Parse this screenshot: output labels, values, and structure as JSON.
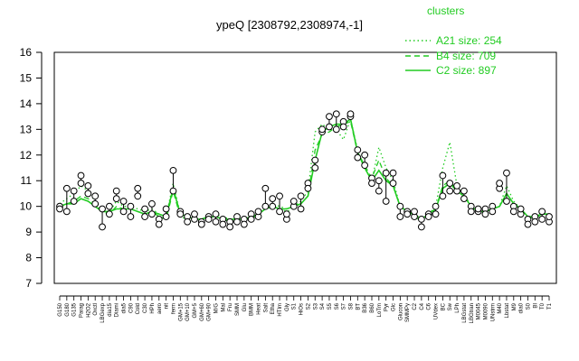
{
  "chart_data": {
    "type": "line",
    "title": "ypeQ [2308792,2308974,-1]",
    "xlabel": "",
    "ylabel": "",
    "ylim": [
      7,
      16
    ],
    "y_ticks": [
      7,
      8,
      9,
      10,
      11,
      12,
      13,
      14,
      15,
      16
    ],
    "grid": false,
    "legend": {
      "title": "clusters",
      "position": "top-right",
      "entries": [
        {
          "label": "A21 size: 254",
          "style": "dotted"
        },
        {
          "label": "B4 size: 709",
          "style": "dashed"
        },
        {
          "label": "C2 size: 897",
          "style": "solid"
        }
      ]
    },
    "line_color": "#22cc22",
    "categories": [
      "G150",
      "G180",
      "G135",
      "Parag",
      "H2O2",
      "Oxctl",
      "LBGexp",
      "dia15",
      "Diami",
      "dia5",
      "C90",
      "Cold",
      "C30",
      "HPh",
      "aero",
      "nit",
      "ferm",
      "GM+15",
      "GM+10",
      "GM+5",
      "GM+60",
      "GM+90",
      "M/G",
      "Mal",
      "Fru",
      "SMM",
      "Glu",
      "BMM",
      "Heat",
      "Salt",
      "Etha",
      "HTIm",
      "Gly",
      "S1",
      "HiOs",
      "S2",
      "S3",
      "S4",
      "S5",
      "S6",
      "S7",
      "S8",
      "BT",
      "B36",
      "B60",
      "LoTm",
      "Pyr",
      "Glc",
      "Glucon",
      "SMMPy",
      "C2",
      "C4",
      "C6",
      "UVdex",
      "BC",
      "Sw",
      "LPh",
      "LBGstat",
      "LBGtran",
      "M0045",
      "M0090",
      "UNstrm",
      "M40",
      "Lbstat",
      "M9",
      "dia0",
      "S0",
      "BI",
      "T0",
      "T1"
    ],
    "series": [
      {
        "name": "A21 size: 254",
        "style": "dotted",
        "values": [
          10.1,
          10.3,
          10.5,
          10.8,
          10.6,
          10.2,
          9.9,
          9.8,
          10.2,
          10.0,
          10.0,
          9.9,
          9.8,
          9.9,
          9.7,
          9.6,
          10.9,
          9.7,
          9.6,
          9.5,
          9.5,
          9.6,
          9.7,
          9.6,
          9.5,
          9.5,
          9.5,
          9.6,
          9.8,
          10.0,
          10.1,
          10.0,
          9.9,
          10.0,
          10.2,
          10.6,
          12.9,
          13.2,
          13.0,
          13.0,
          12.6,
          13.4,
          12.2,
          11.5,
          11.0,
          12.3,
          11.5,
          11.0,
          10.0,
          9.8,
          9.6,
          9.4,
          9.7,
          10.0,
          11.5,
          12.5,
          10.8,
          10.5,
          10.0,
          9.8,
          9.8,
          9.9,
          10.0,
          10.8,
          10.2,
          9.9,
          9.6,
          9.5,
          9.7,
          9.7
        ]
      },
      {
        "name": "B4 size: 709",
        "style": "dashed",
        "values": [
          10.0,
          10.1,
          10.2,
          10.4,
          10.3,
          10.1,
          9.8,
          9.7,
          10.0,
          9.9,
          9.9,
          9.8,
          9.7,
          9.8,
          9.6,
          9.5,
          10.6,
          9.6,
          9.5,
          9.4,
          9.5,
          9.6,
          9.6,
          9.5,
          9.4,
          9.4,
          9.5,
          9.5,
          9.7,
          9.9,
          10.0,
          9.9,
          9.8,
          9.9,
          10.1,
          10.4,
          12.2,
          12.8,
          12.9,
          13.1,
          13.2,
          13.3,
          12.1,
          11.6,
          11.1,
          11.8,
          11.1,
          10.8,
          10.0,
          9.8,
          9.6,
          9.5,
          9.7,
          9.9,
          10.8,
          11.0,
          10.6,
          10.4,
          10.0,
          9.8,
          9.8,
          9.9,
          10.0,
          10.5,
          10.1,
          9.9,
          9.6,
          9.6,
          9.7,
          9.7
        ]
      },
      {
        "name": "C2 size: 897",
        "style": "solid",
        "values": [
          10.0,
          10.1,
          10.1,
          10.3,
          10.2,
          10.0,
          9.8,
          9.8,
          9.9,
          9.9,
          9.9,
          9.8,
          9.7,
          9.8,
          9.7,
          9.6,
          10.7,
          9.7,
          9.6,
          9.5,
          9.5,
          9.6,
          9.6,
          9.5,
          9.5,
          9.5,
          9.5,
          9.6,
          9.7,
          9.9,
          10.0,
          9.9,
          9.9,
          10.0,
          10.1,
          10.4,
          11.8,
          12.9,
          13.1,
          13.2,
          13.2,
          13.4,
          12.1,
          11.5,
          11.0,
          11.4,
          11.0,
          10.8,
          10.0,
          9.8,
          9.7,
          9.5,
          9.7,
          9.9,
          10.7,
          10.9,
          10.6,
          10.4,
          10.0,
          9.8,
          9.8,
          9.9,
          10.0,
          10.5,
          10.1,
          9.9,
          9.6,
          9.6,
          9.7,
          9.7
        ]
      }
    ],
    "points": [
      {
        "cat": "G150",
        "y": [
          10.0,
          9.9
        ]
      },
      {
        "cat": "G180",
        "y": [
          10.7,
          9.8
        ]
      },
      {
        "cat": "G135",
        "y": [
          10.6,
          10.2
        ]
      },
      {
        "cat": "Parag",
        "y": [
          11.2,
          10.9
        ]
      },
      {
        "cat": "H2O2",
        "y": [
          10.8,
          10.5
        ]
      },
      {
        "cat": "Oxctl",
        "y": [
          10.4,
          10.1
        ]
      },
      {
        "cat": "LBGexp",
        "y": [
          9.9,
          9.2
        ]
      },
      {
        "cat": "dia15",
        "y": [
          9.7,
          10.0
        ]
      },
      {
        "cat": "Diami",
        "y": [
          10.6,
          10.3
        ]
      },
      {
        "cat": "dia5",
        "y": [
          9.8,
          10.2
        ]
      },
      {
        "cat": "C90",
        "y": [
          9.6,
          10.0
        ]
      },
      {
        "cat": "Cold",
        "y": [
          10.7,
          10.4
        ]
      },
      {
        "cat": "C30",
        "y": [
          9.9,
          9.6
        ]
      },
      {
        "cat": "HPh",
        "y": [
          9.7,
          10.1
        ]
      },
      {
        "cat": "aero",
        "y": [
          9.5,
          9.3
        ]
      },
      {
        "cat": "nit",
        "y": [
          9.6,
          9.9
        ]
      },
      {
        "cat": "ferm",
        "y": [
          11.4,
          10.6
        ]
      },
      {
        "cat": "GM+15",
        "y": [
          9.8,
          9.7
        ]
      },
      {
        "cat": "GM+10",
        "y": [
          9.6,
          9.4
        ]
      },
      {
        "cat": "GM+5",
        "y": [
          9.5,
          9.7
        ]
      },
      {
        "cat": "GM+60",
        "y": [
          9.4,
          9.3
        ]
      },
      {
        "cat": "GM+90",
        "y": [
          9.6,
          9.5
        ]
      },
      {
        "cat": "M/G",
        "y": [
          9.7,
          9.4
        ]
      },
      {
        "cat": "Mal",
        "y": [
          9.5,
          9.3
        ]
      },
      {
        "cat": "Fru",
        "y": [
          9.4,
          9.2
        ]
      },
      {
        "cat": "SMM",
        "y": [
          9.6,
          9.4
        ]
      },
      {
        "cat": "Glu",
        "y": [
          9.5,
          9.3
        ]
      },
      {
        "cat": "BMM",
        "y": [
          9.7,
          9.5
        ]
      },
      {
        "cat": "Heat",
        "y": [
          9.6,
          9.8
        ]
      },
      {
        "cat": "Salt",
        "y": [
          10.7,
          10.0
        ]
      },
      {
        "cat": "Etha",
        "y": [
          10.3,
          10.0
        ]
      },
      {
        "cat": "HTIm",
        "y": [
          9.8,
          10.4
        ]
      },
      {
        "cat": "Gly",
        "y": [
          9.5,
          9.7
        ]
      },
      {
        "cat": "S1",
        "y": [
          10.0,
          10.2
        ]
      },
      {
        "cat": "HiOs",
        "y": [
          10.4,
          9.9
        ]
      },
      {
        "cat": "S2",
        "y": [
          10.9,
          10.7
        ]
      },
      {
        "cat": "S3",
        "y": [
          11.5,
          11.8
        ]
      },
      {
        "cat": "S4",
        "y": [
          12.9,
          13.0
        ]
      },
      {
        "cat": "S5",
        "y": [
          13.5,
          13.1
        ]
      },
      {
        "cat": "S6",
        "y": [
          13.6,
          13.0
        ]
      },
      {
        "cat": "S7",
        "y": [
          13.3,
          13.1
        ]
      },
      {
        "cat": "S8",
        "y": [
          13.5,
          13.6
        ]
      },
      {
        "cat": "BT",
        "y": [
          12.2,
          11.9
        ]
      },
      {
        "cat": "B36",
        "y": [
          12.0,
          11.6
        ]
      },
      {
        "cat": "B60",
        "y": [
          11.1,
          10.9
        ]
      },
      {
        "cat": "LoTm",
        "y": [
          10.6,
          11.0
        ]
      },
      {
        "cat": "Pyr",
        "y": [
          11.3,
          10.2
        ]
      },
      {
        "cat": "Glc",
        "y": [
          11.3,
          10.9
        ]
      },
      {
        "cat": "Glucon",
        "y": [
          10.0,
          9.6
        ]
      },
      {
        "cat": "SMMPy",
        "y": [
          9.8,
          9.7
        ]
      },
      {
        "cat": "C2",
        "y": [
          9.6,
          9.8
        ]
      },
      {
        "cat": "C4",
        "y": [
          9.5,
          9.2
        ]
      },
      {
        "cat": "C6",
        "y": [
          9.7,
          9.6
        ]
      },
      {
        "cat": "UVdex",
        "y": [
          10.0,
          9.7
        ]
      },
      {
        "cat": "BC",
        "y": [
          11.2,
          10.4
        ]
      },
      {
        "cat": "Sw",
        "y": [
          10.9,
          10.6
        ]
      },
      {
        "cat": "LPh",
        "y": [
          10.6,
          10.8
        ]
      },
      {
        "cat": "LBGstat",
        "y": [
          10.3,
          10.6
        ]
      },
      {
        "cat": "LBGtran",
        "y": [
          10.0,
          9.8
        ]
      },
      {
        "cat": "M0045",
        "y": [
          9.8,
          9.9
        ]
      },
      {
        "cat": "M0090",
        "y": [
          9.9,
          9.7
        ]
      },
      {
        "cat": "UNstrm",
        "y": [
          10.0,
          9.8
        ]
      },
      {
        "cat": "M40",
        "y": [
          10.7,
          10.9
        ]
      },
      {
        "cat": "Lbstat",
        "y": [
          11.3,
          10.2
        ]
      },
      {
        "cat": "M9",
        "y": [
          10.0,
          9.8
        ]
      },
      {
        "cat": "dia0",
        "y": [
          9.7,
          9.9
        ]
      },
      {
        "cat": "S0",
        "y": [
          9.5,
          9.3
        ]
      },
      {
        "cat": "BI",
        "y": [
          9.6,
          9.4
        ]
      },
      {
        "cat": "T0",
        "y": [
          9.8,
          9.5
        ]
      },
      {
        "cat": "T1",
        "y": [
          9.4,
          9.6
        ]
      }
    ]
  }
}
